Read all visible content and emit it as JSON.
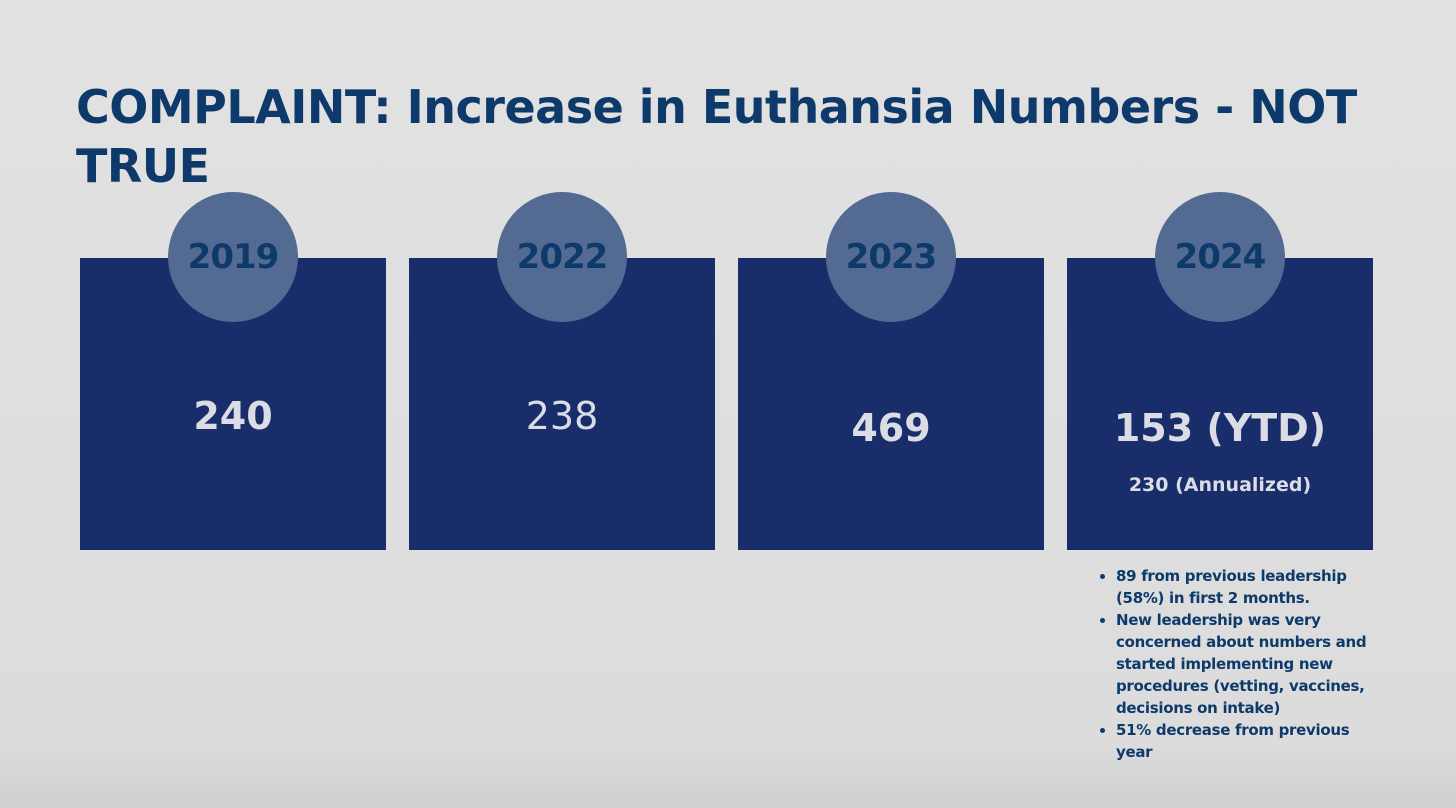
{
  "title": "COMPLAINT: Increase in Euthansia Numbers - NOT TRUE",
  "cards": [
    {
      "year": "2019",
      "value": "240"
    },
    {
      "year": "2022",
      "value": "238"
    },
    {
      "year": "2023",
      "value": "469"
    },
    {
      "year": "2024",
      "value": "153 (YTD)",
      "note": "230 (Annualized)"
    }
  ],
  "bullets": [
    "89 from previous leadership (58%) in first 2 months.",
    "New leadership was very concerned about numbers and started implementing new procedures  (vetting, vaccines, decisions on intake)",
    "51% decrease from previous year"
  ]
}
